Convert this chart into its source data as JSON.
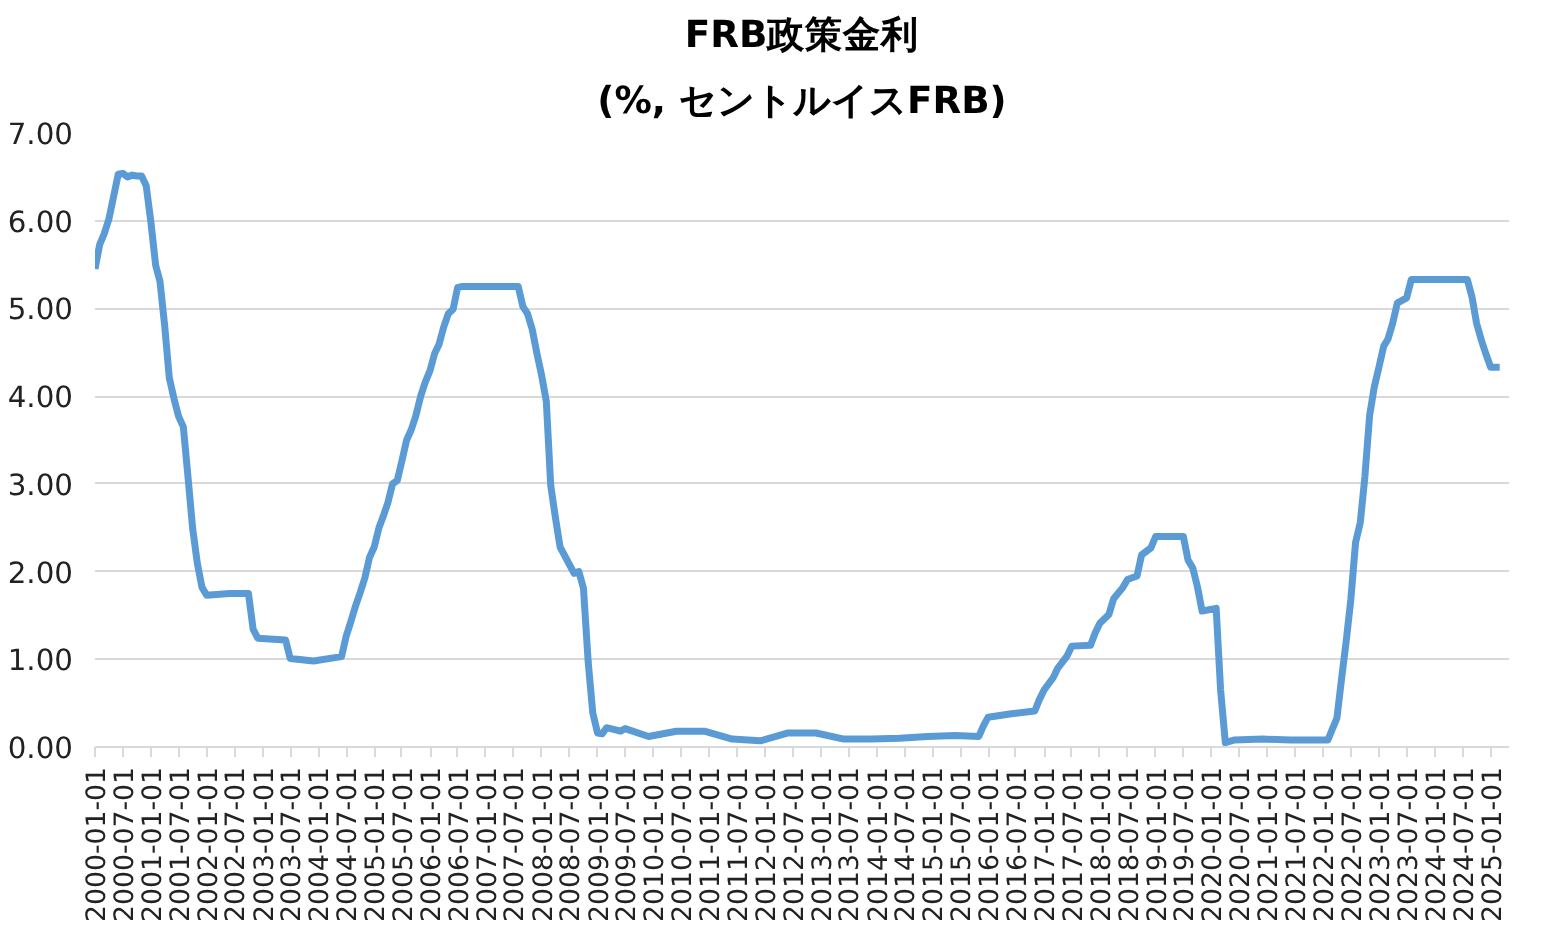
{
  "chart_data": {
    "type": "line",
    "title": "FRB政策金利",
    "subtitle": "(%, セントルイスFRB)",
    "x": [
      "2000-01-01",
      "2000-02-01",
      "2000-03-01",
      "2000-04-01",
      "2000-05-01",
      "2000-06-01",
      "2000-07-01",
      "2000-08-01",
      "2000-09-01",
      "2000-10-01",
      "2000-11-01",
      "2000-12-01",
      "2001-01-01",
      "2001-02-01",
      "2001-03-01",
      "2001-04-01",
      "2001-05-01",
      "2001-06-01",
      "2001-07-01",
      "2001-08-01",
      "2001-09-01",
      "2001-10-01",
      "2001-11-01",
      "2001-12-01",
      "2002-01-01",
      "2002-06-01",
      "2002-10-01",
      "2002-11-01",
      "2002-12-01",
      "2003-06-01",
      "2003-07-01",
      "2003-12-01",
      "2004-06-01",
      "2004-07-01",
      "2004-08-01",
      "2004-09-01",
      "2004-10-01",
      "2004-11-01",
      "2004-12-01",
      "2005-01-01",
      "2005-02-01",
      "2005-03-01",
      "2005-04-01",
      "2005-05-01",
      "2005-06-01",
      "2005-07-01",
      "2005-08-01",
      "2005-09-01",
      "2005-10-01",
      "2005-11-01",
      "2005-12-01",
      "2006-01-01",
      "2006-02-01",
      "2006-03-01",
      "2006-04-01",
      "2006-05-01",
      "2006-06-01",
      "2006-07-01",
      "2006-08-01",
      "2007-08-01",
      "2007-09-01",
      "2007-10-01",
      "2007-11-01",
      "2007-12-01",
      "2008-01-01",
      "2008-02-01",
      "2008-03-01",
      "2008-04-01",
      "2008-05-01",
      "2008-08-01",
      "2008-09-01",
      "2008-10-01",
      "2008-11-01",
      "2008-12-01",
      "2009-01-01",
      "2009-02-01",
      "2009-03-01",
      "2009-06-01",
      "2009-07-01",
      "2009-12-01",
      "2010-06-01",
      "2010-12-01",
      "2011-06-01",
      "2011-12-01",
      "2012-06-01",
      "2012-12-01",
      "2013-06-01",
      "2013-12-01",
      "2014-06-01",
      "2014-12-01",
      "2015-06-01",
      "2015-11-01",
      "2015-12-01",
      "2016-01-01",
      "2016-06-01",
      "2016-11-01",
      "2016-12-01",
      "2017-01-01",
      "2017-03-01",
      "2017-04-01",
      "2017-06-01",
      "2017-07-01",
      "2017-11-01",
      "2017-12-01",
      "2018-01-01",
      "2018-03-01",
      "2018-04-01",
      "2018-06-01",
      "2018-07-01",
      "2018-09-01",
      "2018-10-01",
      "2018-12-01",
      "2019-01-01",
      "2019-07-01",
      "2019-08-01",
      "2019-09-01",
      "2019-10-01",
      "2019-11-01",
      "2020-02-01",
      "2020-03-01",
      "2020-04-01",
      "2020-06-01",
      "2020-12-01",
      "2021-06-01",
      "2021-12-01",
      "2022-02-01",
      "2022-03-01",
      "2022-04-01",
      "2022-05-01",
      "2022-06-01",
      "2022-07-01",
      "2022-08-01",
      "2022-09-01",
      "2022-10-01",
      "2022-11-01",
      "2022-12-01",
      "2023-01-01",
      "2023-02-01",
      "2023-03-01",
      "2023-04-01",
      "2023-05-01",
      "2023-07-01",
      "2023-08-01",
      "2024-08-01",
      "2024-09-01",
      "2024-10-01",
      "2024-11-01",
      "2024-12-01",
      "2025-01-01",
      "2025-03-01"
    ],
    "series": [
      {
        "color": "#5b9bd5",
        "values": [
          5.45,
          5.73,
          5.85,
          6.02,
          6.27,
          6.53,
          6.54,
          6.5,
          6.52,
          6.51,
          6.51,
          6.4,
          5.98,
          5.49,
          5.31,
          4.8,
          4.21,
          3.97,
          3.77,
          3.65,
          3.07,
          2.49,
          2.09,
          1.82,
          1.73,
          1.75,
          1.75,
          1.34,
          1.24,
          1.22,
          1.01,
          0.98,
          1.03,
          1.26,
          1.43,
          1.61,
          1.76,
          1.93,
          2.16,
          2.28,
          2.5,
          2.63,
          2.79,
          3.0,
          3.04,
          3.26,
          3.5,
          3.62,
          3.78,
          4.0,
          4.16,
          4.29,
          4.49,
          4.59,
          4.79,
          4.94,
          4.99,
          5.24,
          5.25,
          5.25,
          5.02,
          4.94,
          4.76,
          4.49,
          4.24,
          3.94,
          2.98,
          2.61,
          2.28,
          1.98,
          2.0,
          1.81,
          0.97,
          0.39,
          0.16,
          0.15,
          0.22,
          0.18,
          0.21,
          0.12,
          0.18,
          0.18,
          0.09,
          0.07,
          0.16,
          0.16,
          0.09,
          0.09,
          0.1,
          0.12,
          0.13,
          0.12,
          0.24,
          0.34,
          0.38,
          0.41,
          0.54,
          0.65,
          0.79,
          0.9,
          1.04,
          1.15,
          1.16,
          1.3,
          1.41,
          1.51,
          1.69,
          1.82,
          1.91,
          1.95,
          2.19,
          2.27,
          2.4,
          2.4,
          2.13,
          2.04,
          1.83,
          1.55,
          1.58,
          0.65,
          0.05,
          0.08,
          0.09,
          0.08,
          0.08,
          0.08,
          0.2,
          0.33,
          0.77,
          1.21,
          1.68,
          2.33,
          2.56,
          3.08,
          3.78,
          4.1,
          4.33,
          4.57,
          4.65,
          4.83,
          5.06,
          5.12,
          5.33,
          5.33,
          5.13,
          4.83,
          4.64,
          4.48,
          4.33,
          4.33
        ]
      }
    ],
    "xlim": [
      "2000-01-01",
      "2025-05-01"
    ],
    "xticks": [
      "2000-01-01",
      "2000-07-01",
      "2001-01-01",
      "2001-07-01",
      "2002-01-01",
      "2002-07-01",
      "2003-01-01",
      "2003-07-01",
      "2004-01-01",
      "2004-07-01",
      "2005-01-01",
      "2005-07-01",
      "2006-01-01",
      "2006-07-01",
      "2007-01-01",
      "2007-07-01",
      "2008-01-01",
      "2008-07-01",
      "2009-01-01",
      "2009-07-01",
      "2010-01-01",
      "2010-07-01",
      "2011-01-01",
      "2011-07-01",
      "2012-01-01",
      "2012-07-01",
      "2013-01-01",
      "2013-07-01",
      "2014-01-01",
      "2014-07-01",
      "2015-01-01",
      "2015-07-01",
      "2016-01-01",
      "2016-07-01",
      "2017-01-01",
      "2017-07-01",
      "2018-01-01",
      "2018-07-01",
      "2019-01-01",
      "2019-07-01",
      "2020-01-01",
      "2020-07-01",
      "2021-01-01",
      "2021-07-01",
      "2022-01-01",
      "2022-07-01",
      "2023-01-01",
      "2023-07-01",
      "2024-01-01",
      "2024-07-01",
      "2025-01-01"
    ],
    "ylim": [
      0,
      7
    ],
    "yticks": [
      {
        "value": 0,
        "label": "0.00"
      },
      {
        "value": 1,
        "label": "1.00"
      },
      {
        "value": 2,
        "label": "2.00"
      },
      {
        "value": 3,
        "label": "3.00"
      },
      {
        "value": 4,
        "label": "4.00"
      },
      {
        "value": 5,
        "label": "5.00"
      },
      {
        "value": 6,
        "label": "6.00"
      },
      {
        "value": 7,
        "label": "7.00"
      }
    ],
    "grid": "y"
  }
}
